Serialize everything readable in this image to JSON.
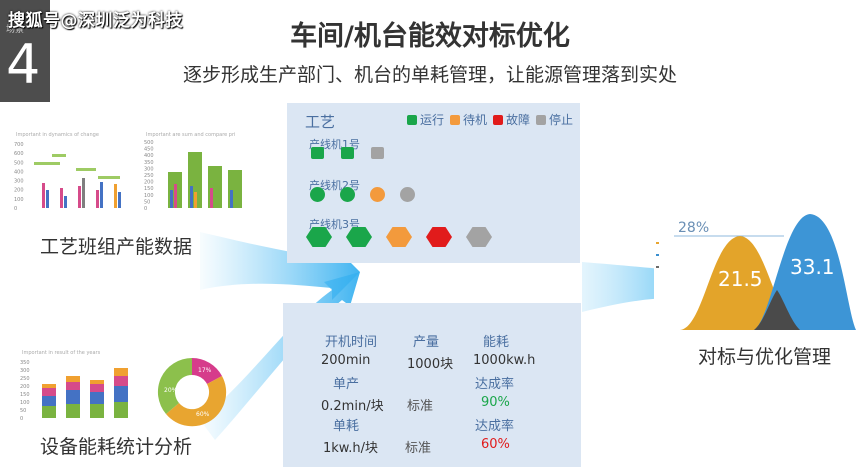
{
  "watermark": "搜狐号@深圳泛为科技",
  "slide_number": "4",
  "slide_number_label": "场景",
  "title": "车间/机台能效对标优化",
  "subtitle": "逐步形成生产部门、机台的单耗管理，让能源管理落到实处",
  "colors": {
    "running": "#1aa64a",
    "standby": "#f39a3c",
    "fault": "#e11b1b",
    "stopped": "#a3a3a3",
    "arrow": "#6cc7f5",
    "card": "#dbe6f3"
  },
  "process_panel": {
    "title": "工艺",
    "legend": [
      {
        "label": "运行",
        "status": "running"
      },
      {
        "label": "待机",
        "status": "standby"
      },
      {
        "label": "故障",
        "status": "fault"
      },
      {
        "label": "停止",
        "status": "stopped"
      }
    ],
    "lines": [
      {
        "label": "产线机1号",
        "shape": "square",
        "statuses": [
          "running",
          "running",
          "stopped"
        ]
      },
      {
        "label": "产线机2号",
        "shape": "circle",
        "statuses": [
          "running",
          "running",
          "standby",
          "stopped"
        ]
      },
      {
        "label": "产线机3号",
        "shape": "hexagon",
        "statuses": [
          "running",
          "running",
          "standby",
          "fault",
          "stopped"
        ]
      }
    ]
  },
  "stats_panel": {
    "headers": [
      "开机时间",
      "产量",
      "能耗"
    ],
    "values": [
      "200min",
      "1000块",
      "1000kw.h"
    ],
    "unit_output_label": "单产",
    "unit_output_value": "0.2min/块",
    "standard_label_1": "标准",
    "rate_label_1": "达成率",
    "rate_value_1": "90%",
    "unit_energy_label": "单耗",
    "unit_energy_value": "1kw.h/块",
    "standard_label_2": "标准",
    "rate_label_2": "达成率",
    "rate_value_2": "60%"
  },
  "captions": {
    "process_data": "工艺班组产能数据",
    "equipment_energy": "设备能耗统计分析",
    "benchmark": "对标与优化管理"
  },
  "mini_chart_1": {
    "title": "Important in dynamics of change",
    "y_ticks": [
      "700",
      "600",
      "500",
      "400",
      "300",
      "200",
      "100",
      "0"
    ]
  },
  "mini_chart_2": {
    "title": "Important are sum and compare pri",
    "y_ticks": [
      "500",
      "450",
      "400",
      "350",
      "300",
      "250",
      "200",
      "150",
      "100",
      "50",
      "0"
    ]
  },
  "mini_chart_3": {
    "title": "Important in result of the years",
    "y_ticks": [
      "350",
      "300",
      "250",
      "200",
      "150",
      "100",
      "50",
      "0"
    ]
  },
  "donut": {
    "labels": [
      "17%",
      "20%",
      "60%"
    ]
  },
  "benchmark_chart": {
    "peak_label": "28%",
    "left_value": "21.5",
    "right_value": "33.1"
  }
}
